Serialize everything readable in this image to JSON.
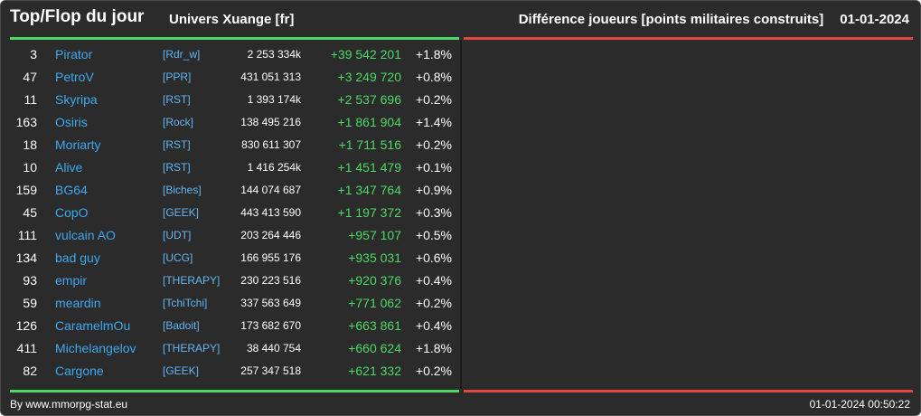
{
  "header": {
    "title": "Top/Flop du jour",
    "universe": "Univers Xuange [fr]",
    "metric": "Différence joueurs [points militaires construits]",
    "date": "01-01-2024"
  },
  "colors": {
    "background": "#2b2b2b",
    "gain": "#4cd964",
    "loss": "#e0483e",
    "link": "#3ea8f0"
  },
  "top_rows": [
    {
      "rank": "3",
      "name": "Pirator",
      "alliance": "[Rdr_w]",
      "points": "2 253 334k",
      "diff": "+39 542 201",
      "pct": "+1.8%"
    },
    {
      "rank": "47",
      "name": "PetroV",
      "alliance": "[PPR]",
      "points": "431 051 313",
      "diff": "+3 249 720",
      "pct": "+0.8%"
    },
    {
      "rank": "11",
      "name": "Skyripa",
      "alliance": "[RST]",
      "points": "1 393 174k",
      "diff": "+2 537 696",
      "pct": "+0.2%"
    },
    {
      "rank": "163",
      "name": "Osiris",
      "alliance": "[Rock]",
      "points": "138 495 216",
      "diff": "+1 861 904",
      "pct": "+1.4%"
    },
    {
      "rank": "18",
      "name": "Moriarty",
      "alliance": "[RST]",
      "points": "830 611 307",
      "diff": "+1 711 516",
      "pct": "+0.2%"
    },
    {
      "rank": "10",
      "name": "Alive",
      "alliance": "[RST]",
      "points": "1 416 254k",
      "diff": "+1 451 479",
      "pct": "+0.1%"
    },
    {
      "rank": "159",
      "name": "BG64",
      "alliance": "[Biches]",
      "points": "144 074 687",
      "diff": "+1 347 764",
      "pct": "+0.9%"
    },
    {
      "rank": "45",
      "name": "CopO",
      "alliance": "[GEEK]",
      "points": "443 413 590",
      "diff": "+1 197 372",
      "pct": "+0.3%"
    },
    {
      "rank": "111",
      "name": "vulcain AO",
      "alliance": "[UDT]",
      "points": "203 264 446",
      "diff": "+957 107",
      "pct": "+0.5%"
    },
    {
      "rank": "134",
      "name": "bad guy",
      "alliance": "[UCG]",
      "points": "166 955 176",
      "diff": "+935 031",
      "pct": "+0.6%"
    },
    {
      "rank": "93",
      "name": "empir",
      "alliance": "[THERAPY]",
      "points": "230 223 516",
      "diff": "+920 376",
      "pct": "+0.4%"
    },
    {
      "rank": "59",
      "name": "meardin",
      "alliance": "[TchiTchi]",
      "points": "337 563 649",
      "diff": "+771 062",
      "pct": "+0.2%"
    },
    {
      "rank": "126",
      "name": "CaramelmOu",
      "alliance": "[Badoit]",
      "points": "173 682 670",
      "diff": "+663 861",
      "pct": "+0.4%"
    },
    {
      "rank": "411",
      "name": "Michelangelov",
      "alliance": "[THERAPY]",
      "points": "38 440 754",
      "diff": "+660 624",
      "pct": "+1.8%"
    },
    {
      "rank": "82",
      "name": "Cargone",
      "alliance": "[GEEK]",
      "points": "257 347 518",
      "diff": "+621 332",
      "pct": "+0.2%"
    }
  ],
  "footer": {
    "credit": "By www.mmorpg-stat.eu",
    "timestamp": "01-01-2024 00:50:22"
  }
}
